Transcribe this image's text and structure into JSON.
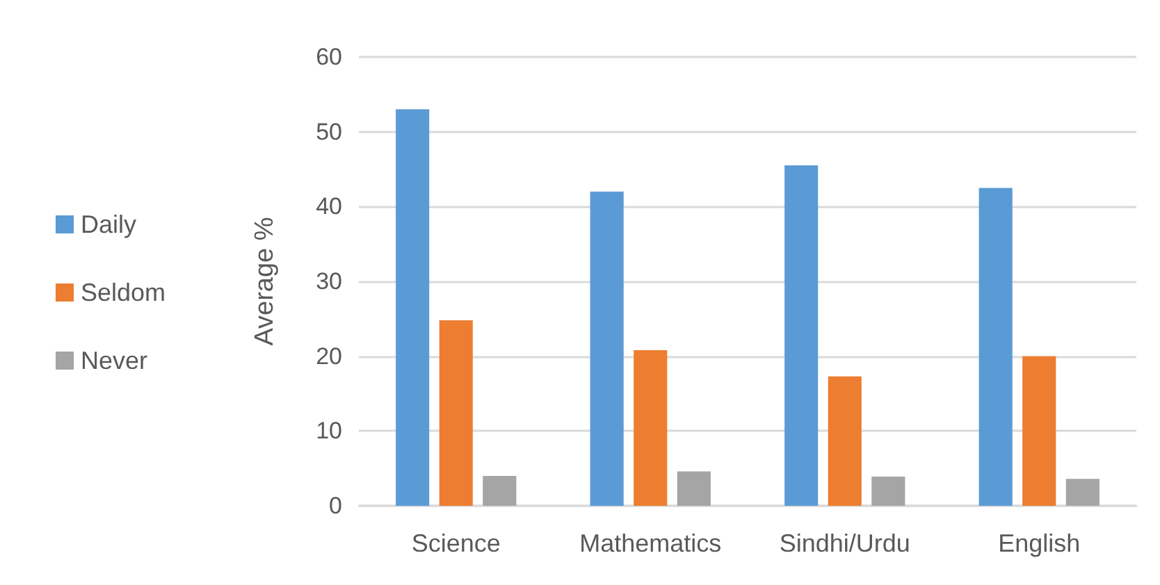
{
  "chart_data": {
    "type": "bar",
    "ylabel": "Average %",
    "categories": [
      "Science",
      "Mathematics",
      "Sindhi/Urdu",
      "English"
    ],
    "series": [
      {
        "name": "Daily",
        "color": "#5b9bd5",
        "values": [
          53.0,
          42.0,
          45.5,
          42.5
        ]
      },
      {
        "name": "Seldom",
        "color": "#ed7d31",
        "values": [
          24.8,
          20.8,
          17.3,
          20.0
        ]
      },
      {
        "name": "Never",
        "color": "#a5a5a5",
        "values": [
          4.0,
          4.6,
          3.9,
          3.6
        ]
      }
    ],
    "ylim": [
      0,
      60
    ],
    "yticks": [
      0,
      10,
      20,
      30,
      40,
      50,
      60
    ],
    "grid": "y",
    "legend": "left"
  }
}
